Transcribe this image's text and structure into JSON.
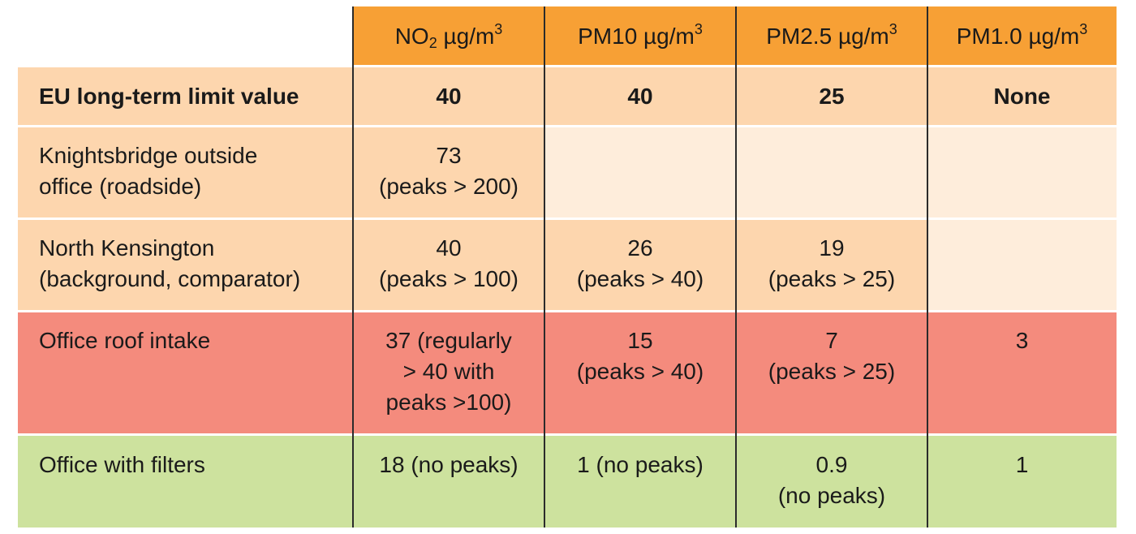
{
  "table": {
    "header": {
      "no2": {
        "name": "NO",
        "sub": "2",
        "unit": " µg/m",
        "sup": "3"
      },
      "pm10": {
        "name": "PM10 µg/m",
        "sup": "3"
      },
      "pm25": {
        "name": "PM2.5 µg/m",
        "sup": "3"
      },
      "pm1": {
        "name": "PM1.0 µg/m",
        "sup": "3"
      }
    },
    "rows": [
      {
        "label": "EU long-term limit value",
        "no2": "40",
        "pm10": "40",
        "pm25": "25",
        "pm1": "None"
      },
      {
        "label_lines": [
          "Knightsbridge outside",
          "office (roadside)"
        ],
        "no2_lines": [
          "73",
          "(peaks > 200)"
        ],
        "pm10": "",
        "pm25": "",
        "pm1": ""
      },
      {
        "label_lines": [
          "North Kensington",
          "(background, comparator)"
        ],
        "no2_lines": [
          "40",
          "(peaks > 100)"
        ],
        "pm10_lines": [
          "26",
          "(peaks > 40)"
        ],
        "pm25_lines": [
          "19",
          "(peaks > 25)"
        ],
        "pm1": ""
      },
      {
        "label": "Office roof intake",
        "no2_lines": [
          "37 (regularly",
          "> 40 with",
          "peaks >100)"
        ],
        "pm10_lines": [
          "15",
          "(peaks > 40)"
        ],
        "pm25_lines": [
          "7",
          "(peaks > 25)"
        ],
        "pm1": "3"
      },
      {
        "label": "Office with filters",
        "no2": "18 (no peaks)",
        "pm10": "1 (no peaks)",
        "pm25_lines": [
          "0.9",
          "(no peaks)"
        ],
        "pm1": "1"
      }
    ]
  },
  "colors": {
    "header_orange": "#f7a035",
    "peach": "#fdd6ae",
    "light_peach": "#feeddb",
    "red": "#f48b7d",
    "green": "#cde29e"
  }
}
